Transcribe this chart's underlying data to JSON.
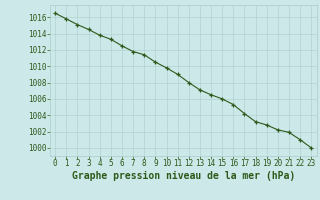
{
  "title": "Graphe pression niveau de la mer (hPa)",
  "x_values": [
    0,
    1,
    2,
    3,
    4,
    5,
    6,
    7,
    8,
    9,
    10,
    11,
    12,
    13,
    14,
    15,
    16,
    17,
    18,
    19,
    20,
    21,
    22,
    23
  ],
  "y_values": [
    1016.5,
    1015.8,
    1015.1,
    1014.5,
    1013.8,
    1013.3,
    1012.5,
    1011.8,
    1011.4,
    1010.5,
    1009.8,
    1009.0,
    1008.0,
    1007.1,
    1006.5,
    1006.0,
    1005.3,
    1004.2,
    1003.2,
    1002.8,
    1002.2,
    1001.9,
    1001.0,
    1000.0
  ],
  "xlim": [
    -0.5,
    23.5
  ],
  "ylim": [
    999.0,
    1017.5
  ],
  "yticks": [
    1000,
    1002,
    1004,
    1006,
    1008,
    1010,
    1012,
    1014,
    1016
  ],
  "xticks": [
    0,
    1,
    2,
    3,
    4,
    5,
    6,
    7,
    8,
    9,
    10,
    11,
    12,
    13,
    14,
    15,
    16,
    17,
    18,
    19,
    20,
    21,
    22,
    23
  ],
  "line_color": "#2d5a1b",
  "marker_color": "#2d5a1b",
  "background_color": "#cce8e8",
  "grid_color": "#aacccc",
  "title_color": "#2d5a1b",
  "tick_label_color": "#2d5a1b",
  "title_fontsize": 7.0,
  "tick_fontsize": 5.5
}
